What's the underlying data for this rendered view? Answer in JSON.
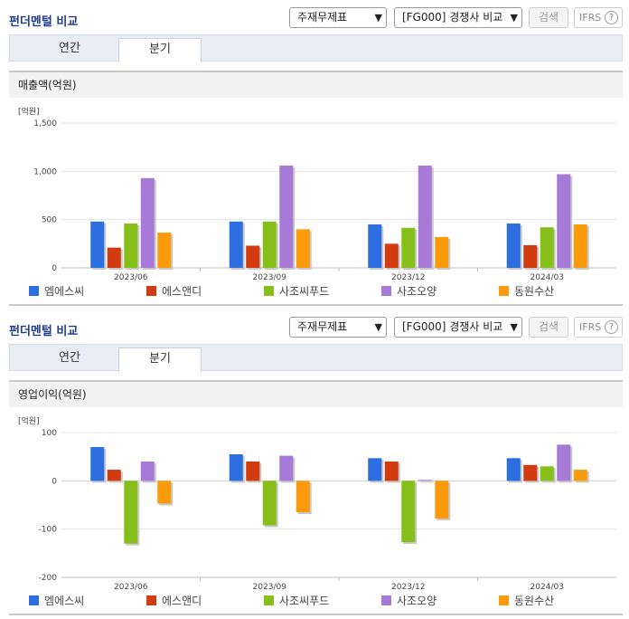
{
  "colors": [
    "#2d6fe0",
    "#d23a0f",
    "#86be1a",
    "#a77ad8",
    "#fb9b0b"
  ],
  "panels": [
    {
      "title": "펀더멘털 비교",
      "select1": "주재무제표",
      "select2": "[FG000] 경쟁사 비교",
      "search_label": "검색",
      "ifrs_label": "IFRS",
      "help_glyph": "?",
      "tab_annual": "연간",
      "tab_quarter": "분기",
      "section_title": "매출액(억원)"
    },
    {
      "title": "펀더멘털 비교",
      "select1": "주재무제표",
      "select2": "[FG000] 경쟁사 비교",
      "search_label": "검색",
      "ifrs_label": "IFRS",
      "help_glyph": "?",
      "tab_annual": "연간",
      "tab_quarter": "분기",
      "section_title": "영업이익(억원)"
    }
  ],
  "chart_data": [
    {
      "type": "bar",
      "unit_label": "[억원]",
      "categories": [
        "2023/06",
        "2023/09",
        "2023/12",
        "2024/03"
      ],
      "ylim": [
        0,
        1500
      ],
      "yticks": [
        0,
        500,
        1000,
        1500
      ],
      "ytick_labels": [
        "0",
        "500",
        "1,000",
        "1,500"
      ],
      "grid": true,
      "legend": "bottom",
      "series": [
        {
          "name": "엠에스씨",
          "values": [
            480,
            480,
            450,
            460
          ]
        },
        {
          "name": "에스앤디",
          "values": [
            210,
            230,
            250,
            235
          ]
        },
        {
          "name": "사조씨푸드",
          "values": [
            460,
            480,
            415,
            420
          ]
        },
        {
          "name": "사조오양",
          "values": [
            930,
            1060,
            1060,
            970
          ]
        },
        {
          "name": "동원수산",
          "values": [
            365,
            400,
            320,
            450
          ]
        }
      ]
    },
    {
      "type": "bar",
      "unit_label": "[억원]",
      "categories": [
        "2023/06",
        "2023/09",
        "2023/12",
        "2024/03"
      ],
      "ylim": [
        -200,
        100
      ],
      "yticks": [
        -200,
        -100,
        0,
        100
      ],
      "ytick_labels": [
        "-200",
        "-100",
        "0",
        "100"
      ],
      "grid": true,
      "legend": "bottom",
      "series": [
        {
          "name": "엠에스씨",
          "values": [
            70,
            55,
            47,
            47
          ]
        },
        {
          "name": "에스앤디",
          "values": [
            23,
            40,
            40,
            33
          ]
        },
        {
          "name": "사조씨푸드",
          "values": [
            -130,
            -92,
            -127,
            30
          ]
        },
        {
          "name": "사조오양",
          "values": [
            40,
            52,
            2,
            75
          ]
        },
        {
          "name": "동원수산",
          "values": [
            -47,
            -65,
            -78,
            23
          ]
        }
      ]
    }
  ]
}
